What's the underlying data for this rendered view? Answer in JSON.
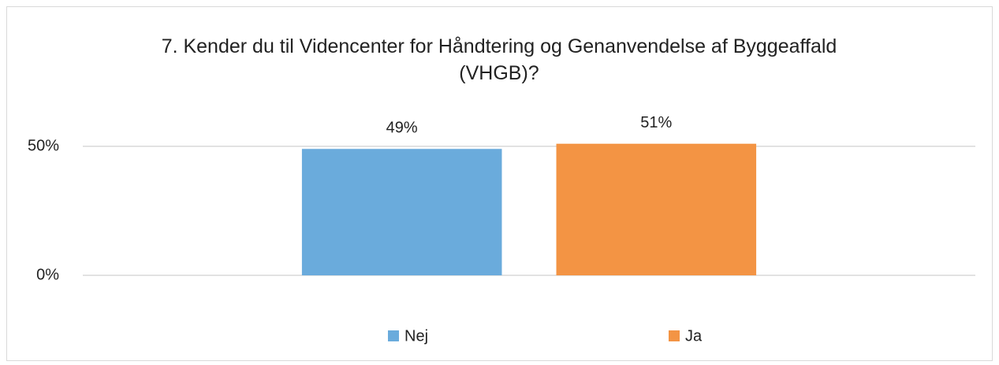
{
  "chart_data": {
    "type": "bar",
    "title": "7. Kender du til Videncenter for Håndtering og Genanvendelse af Byggeaffald (VHGB)?",
    "categories": [
      null
    ],
    "series": [
      {
        "name": "Nej",
        "color": "#6aabdc",
        "values": [
          49
        ],
        "value_labels": [
          "49%"
        ]
      },
      {
        "name": "Ja",
        "color": "#f39444",
        "values": [
          51
        ],
        "value_labels": [
          "51%"
        ]
      }
    ],
    "ylim": [
      0,
      50
    ],
    "yticks": [
      {
        "value": 0,
        "label": "0%"
      },
      {
        "value": 50,
        "label": "50%"
      }
    ],
    "grid": true,
    "legend": "bottom"
  }
}
